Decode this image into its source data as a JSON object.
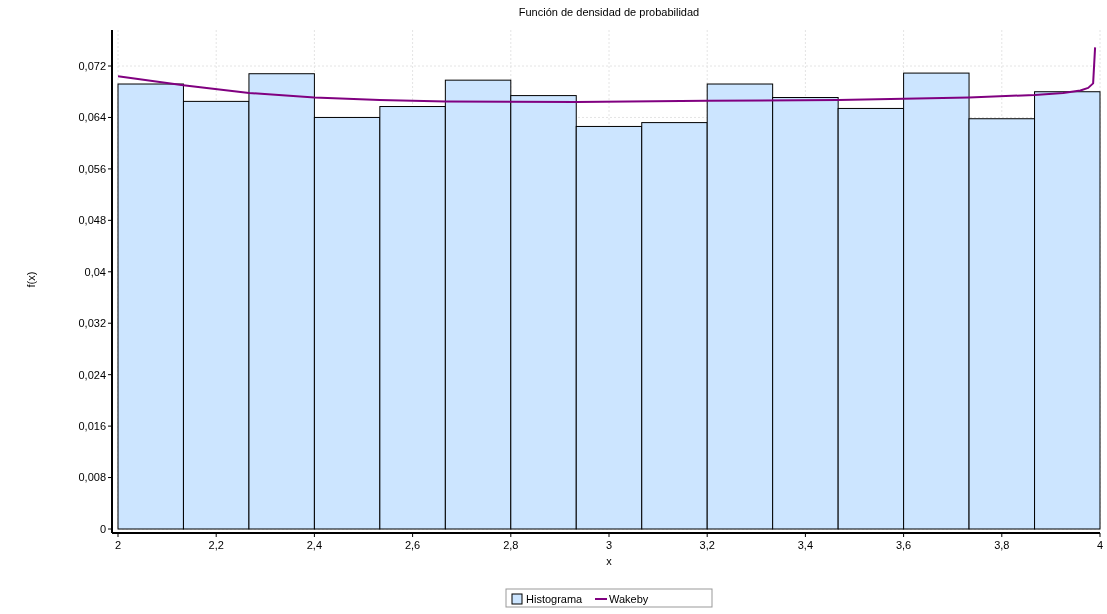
{
  "chart_data": {
    "type": "histogram",
    "title": "Función de densidad de probabilidad",
    "xlabel": "x",
    "ylabel": "f(x)",
    "bins": [
      2,
      2.1333,
      2.2667,
      2.4,
      2.5333,
      2.6667,
      2.8,
      2.9333,
      3.0667,
      3.2,
      3.3333,
      3.4667,
      3.6,
      3.7333,
      3.8667,
      4
    ],
    "series": [
      {
        "name": "Histograma",
        "color": "#cce5ff",
        "values": [
          0.0692,
          0.0665,
          0.0708,
          0.064,
          0.0657,
          0.0698,
          0.0674,
          0.0626,
          0.0632,
          0.0692,
          0.0671,
          0.0654,
          0.0709,
          0.0638,
          0.068
        ]
      },
      {
        "name": "Wakeby",
        "type": "line",
        "color": "#800080",
        "x": [
          2,
          2.133,
          2.267,
          2.4,
          2.533,
          2.667,
          2.933,
          3.2,
          3.467,
          3.6,
          3.733,
          3.867,
          3.925,
          3.96,
          3.976,
          3.986,
          3.99
        ],
        "values": [
          0.0704,
          0.069,
          0.0678,
          0.0671,
          0.0667,
          0.0665,
          0.0664,
          0.0666,
          0.0667,
          0.0669,
          0.0671,
          0.0675,
          0.0678,
          0.0682,
          0.0686,
          0.0693,
          0.0749
        ]
      }
    ],
    "xlim": [
      2,
      4
    ],
    "ylim": [
      0,
      0.0776
    ],
    "xticks": [
      2,
      {
        "value": 2.2,
        "label": "2,2"
      },
      {
        "value": 2.4,
        "label": "2,4"
      },
      {
        "value": 2.6,
        "label": "2,6"
      },
      {
        "value": 2.8,
        "label": "2,8"
      },
      3,
      {
        "value": 3.2,
        "label": "3,2"
      },
      {
        "value": 3.4,
        "label": "3,4"
      },
      {
        "value": 3.6,
        "label": "3,6"
      },
      {
        "value": 3.8,
        "label": "3,8"
      },
      4
    ],
    "yticks": [
      0,
      {
        "value": 0.008,
        "label": "0,008"
      },
      {
        "value": 0.016,
        "label": "0,016"
      },
      {
        "value": 0.024,
        "label": "0,024"
      },
      {
        "value": 0.032,
        "label": "0,032"
      },
      {
        "value": 0.04,
        "label": "0,04"
      },
      {
        "value": 0.048,
        "label": "0,048"
      },
      {
        "value": 0.056,
        "label": "0,056"
      },
      {
        "value": 0.064,
        "label": "0,064"
      },
      {
        "value": 0.072,
        "label": "0,072"
      }
    ],
    "grid": true,
    "legend": "bottom"
  }
}
